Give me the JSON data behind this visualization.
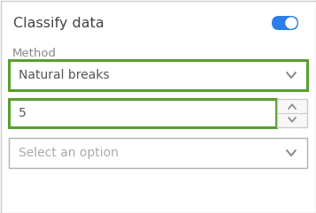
{
  "background_color": "#ffffff",
  "border_color": "#cccccc",
  "title_text": "Classify data",
  "title_color": "#444444",
  "title_fontsize": 11.5,
  "toggle_on_color": "#2b7de9",
  "method_label": "Method",
  "method_label_color": "#888888",
  "method_label_fontsize": 9.5,
  "dropdown1_text": "Natural breaks",
  "dropdown1_border_color": "#5a9e2f",
  "dropdown1_text_color": "#555555",
  "dropdown1_fontsize": 10,
  "spinbox_text": "5",
  "spinbox_border_color": "#5a9e2f",
  "spinbox_text_color": "#555555",
  "spinbox_fontsize": 10,
  "dropdown2_text": "Select an option",
  "dropdown2_border_color": "#b0b0b0",
  "dropdown2_text_color": "#aaaaaa",
  "dropdown2_fontsize": 10,
  "arrow_color": "#888888",
  "outer_border_color": "#cccccc",
  "spinbox_bg": "#f9f9f9"
}
